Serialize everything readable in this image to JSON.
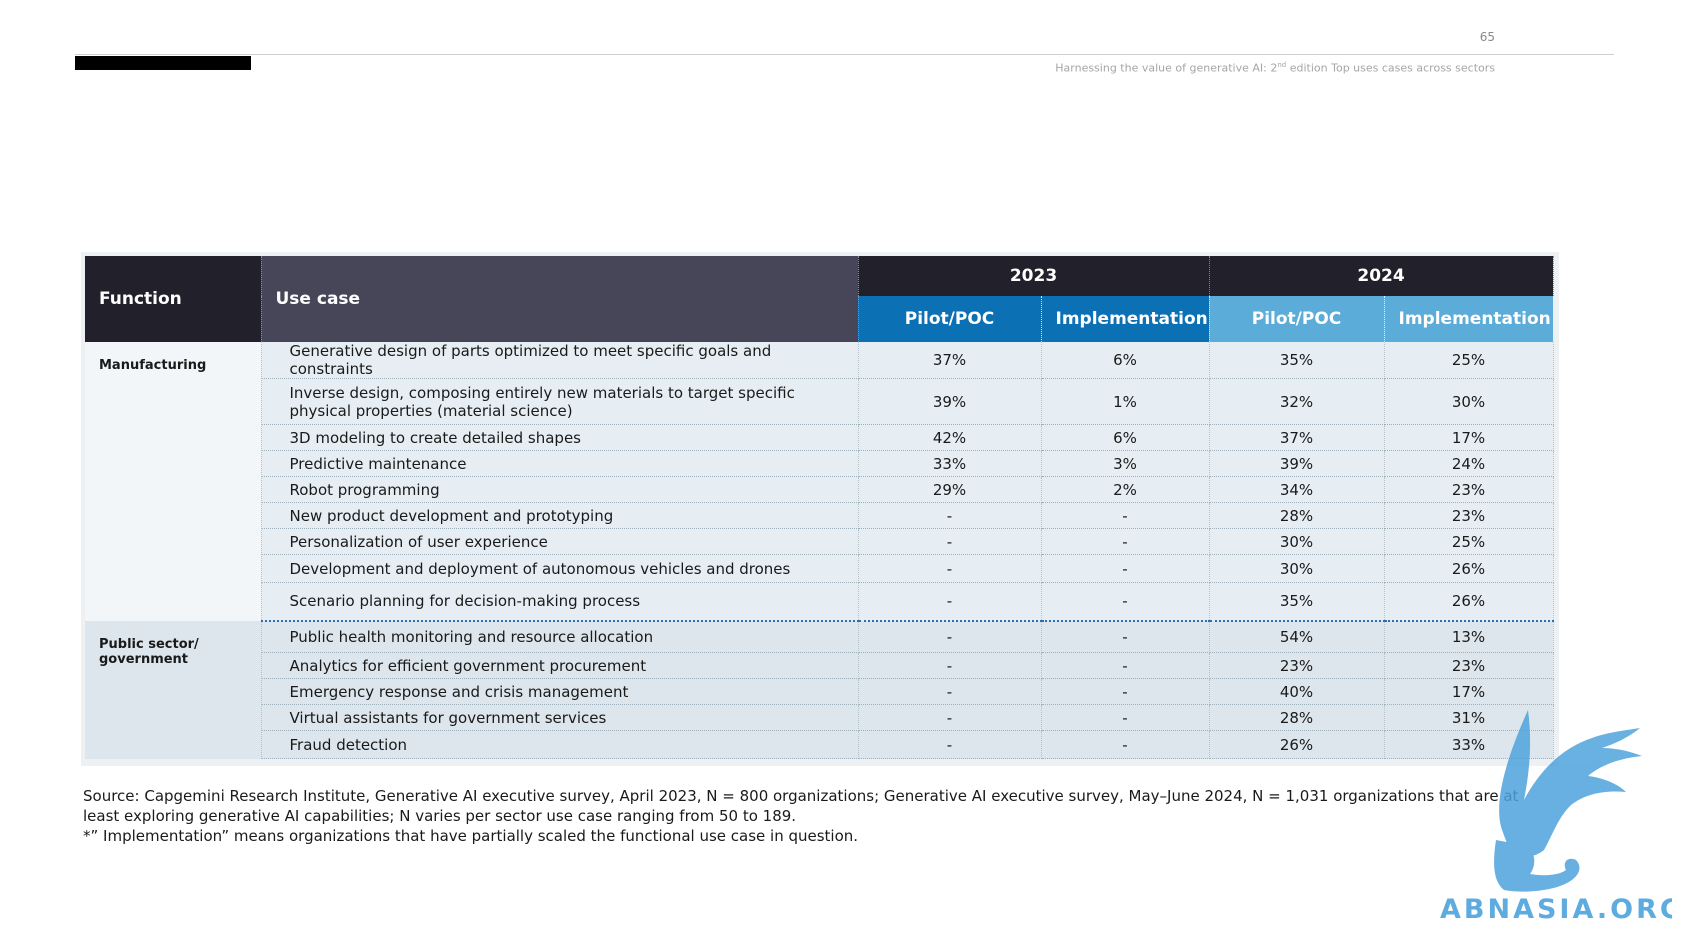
{
  "header": {
    "page_number": "65",
    "running_title_pre": "Harnessing the value of generative AI: 2",
    "running_title_sup": "nd",
    "running_title_post": " edition Top uses cases across sectors"
  },
  "table": {
    "headers": {
      "function": "Function",
      "use_case": "Use case",
      "year_2023": "2023",
      "year_2024": "2024",
      "pilot": "Pilot/POC",
      "implementation": "Implementation"
    },
    "groups": [
      {
        "function": "Manufacturing",
        "rows": [
          {
            "use_case": "Generative design of parts optimized to meet specific goals and constraints",
            "p2023": "37%",
            "i2023": "6%",
            "p2024": "35%",
            "i2024": "25%"
          },
          {
            "use_case": "Inverse design, composing entirely new materials to target specific physical properties (material science)",
            "p2023": "39%",
            "i2023": "1%",
            "p2024": "32%",
            "i2024": "30%"
          },
          {
            "use_case": "3D modeling to create detailed shapes",
            "p2023": "42%",
            "i2023": "6%",
            "p2024": "37%",
            "i2024": "17%"
          },
          {
            "use_case": "Predictive maintenance",
            "p2023": "33%",
            "i2023": "3%",
            "p2024": "39%",
            "i2024": "24%"
          },
          {
            "use_case": "Robot programming",
            "p2023": "29%",
            "i2023": "2%",
            "p2024": "34%",
            "i2024": "23%"
          },
          {
            "use_case": "New product development and prototyping",
            "p2023": "-",
            "i2023": "-",
            "p2024": "28%",
            "i2024": "23%"
          },
          {
            "use_case": "Personalization of user experience",
            "p2023": "-",
            "i2023": "-",
            "p2024": "30%",
            "i2024": "25%"
          },
          {
            "use_case": "Development and deployment of autonomous vehicles and drones",
            "p2023": "-",
            "i2023": "-",
            "p2024": "30%",
            "i2024": "26%"
          },
          {
            "use_case": "Scenario planning for decision-making process",
            "p2023": "-",
            "i2023": "-",
            "p2024": "35%",
            "i2024": "26%"
          }
        ]
      },
      {
        "function": "Public sector/ government",
        "rows": [
          {
            "use_case": "Public health monitoring and resource allocation",
            "p2023": "-",
            "i2023": "-",
            "p2024": "54%",
            "i2024": "13%"
          },
          {
            "use_case": "Analytics for efficient government procurement",
            "p2023": "-",
            "i2023": "-",
            "p2024": "23%",
            "i2024": "23%"
          },
          {
            "use_case": "Emergency response and crisis management",
            "p2023": "-",
            "i2023": "-",
            "p2024": "40%",
            "i2024": "17%"
          },
          {
            "use_case": "Virtual assistants for government services",
            "p2023": "-",
            "i2023": "-",
            "p2024": "28%",
            "i2024": "31%"
          },
          {
            "use_case": "Fraud detection",
            "p2023": "-",
            "i2023": "-",
            "p2024": "26%",
            "i2024": "33%"
          }
        ]
      }
    ]
  },
  "footnotes": {
    "source": "Source: Capgemini Research Institute, Generative AI executive survey, April 2023, N = 800 organizations; Generative AI executive survey, May–June 2024, N = 1,031 organizations that are at least exploring generative AI capabilities; N varies per sector use case ranging from 50 to 189.",
    "note": "*” Implementation” means organizations that have partially scaled the functional use case in question."
  },
  "watermark": {
    "text": "ABNASIA.ORG",
    "icon": "griffin-icon",
    "color": "#4da3dc"
  },
  "colors": {
    "header_dark": "#21202b",
    "header_use_case": "#474659",
    "blue_2023": "#0c70b4",
    "blue_2024": "#5bacd8"
  }
}
